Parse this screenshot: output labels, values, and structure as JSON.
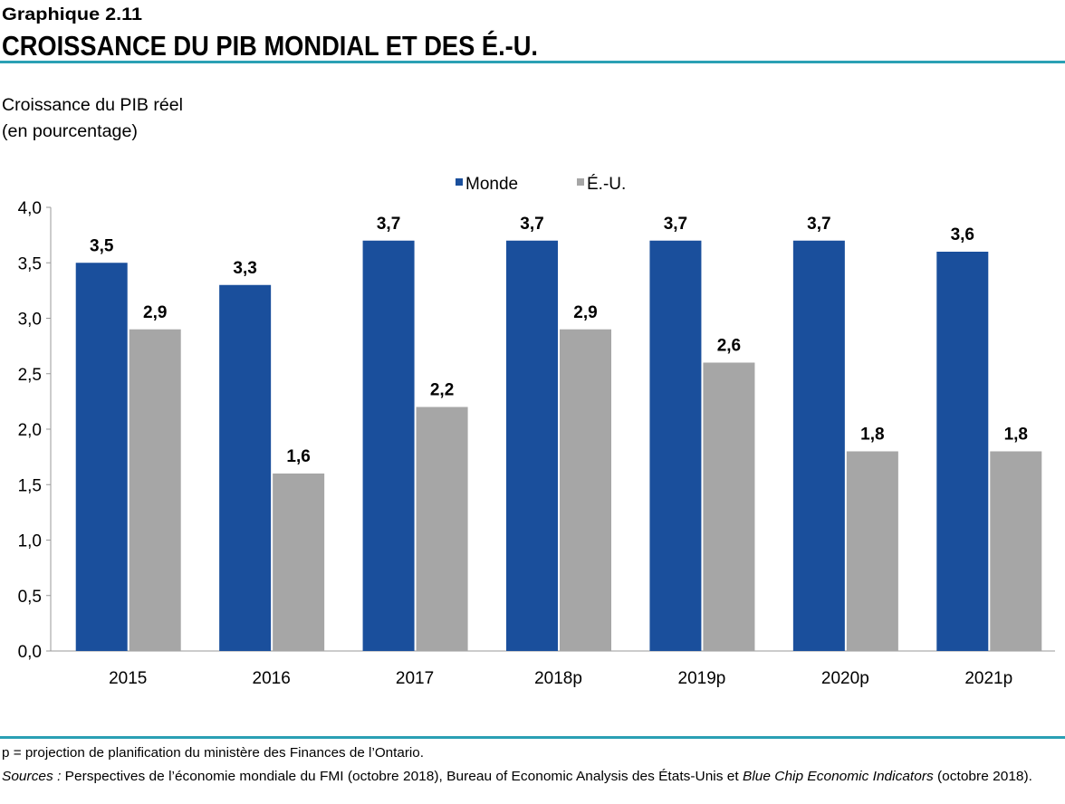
{
  "header": {
    "kicker": "Graphique 2.11",
    "title": "CROISSANCE DU PIB MONDIAL ET DES É.-U."
  },
  "chart_data": {
    "type": "bar",
    "y_label": [
      "Croissance du PIB réel",
      "(en pourcentage)"
    ],
    "categories": [
      "2015",
      "2016",
      "2017",
      "2018p",
      "2019p",
      "2020p",
      "2021p"
    ],
    "series": [
      {
        "name": "Monde",
        "color": "#1a4f9c",
        "values": [
          3.5,
          3.3,
          3.7,
          3.7,
          3.7,
          3.7,
          3.6
        ],
        "value_labels": [
          "3,5",
          "3,3",
          "3,7",
          "3,7",
          "3,7",
          "3,7",
          "3,6"
        ]
      },
      {
        "name": "É.-U.",
        "color": "#a6a6a6",
        "values": [
          2.9,
          1.6,
          2.2,
          2.9,
          2.6,
          1.8,
          1.8
        ],
        "value_labels": [
          "2,9",
          "1,6",
          "2,2",
          "2,9",
          "2,6",
          "1,8",
          "1,8"
        ]
      }
    ],
    "ylim": [
      0,
      4
    ],
    "yticks": [
      {
        "value": 0,
        "label": "0,0"
      },
      {
        "value": 0.5,
        "label": "0,5"
      },
      {
        "value": 1,
        "label": "1,0"
      },
      {
        "value": 1.5,
        "label": "1,5"
      },
      {
        "value": 2,
        "label": "2,0"
      },
      {
        "value": 2.5,
        "label": "2,5"
      },
      {
        "value": 3,
        "label": "3,0"
      },
      {
        "value": 3.5,
        "label": "3,5"
      },
      {
        "value": 4,
        "label": "4,0"
      }
    ],
    "grid": false,
    "legend": "top"
  },
  "notes": {
    "projection": "p = projection de planification du ministère des Finances de l’Ontario.",
    "sources": [
      {
        "text": "Sources :",
        "italic": true
      },
      {
        "text": " Perspectives de l’économie mondiale du FMI (octobre 2018), Bureau of Economic Analysis des États-Unis et ",
        "italic": false
      },
      {
        "text": "Blue Chip Economic Indicators",
        "italic": true
      },
      {
        "text": " (octobre 2018).",
        "italic": false
      }
    ]
  }
}
